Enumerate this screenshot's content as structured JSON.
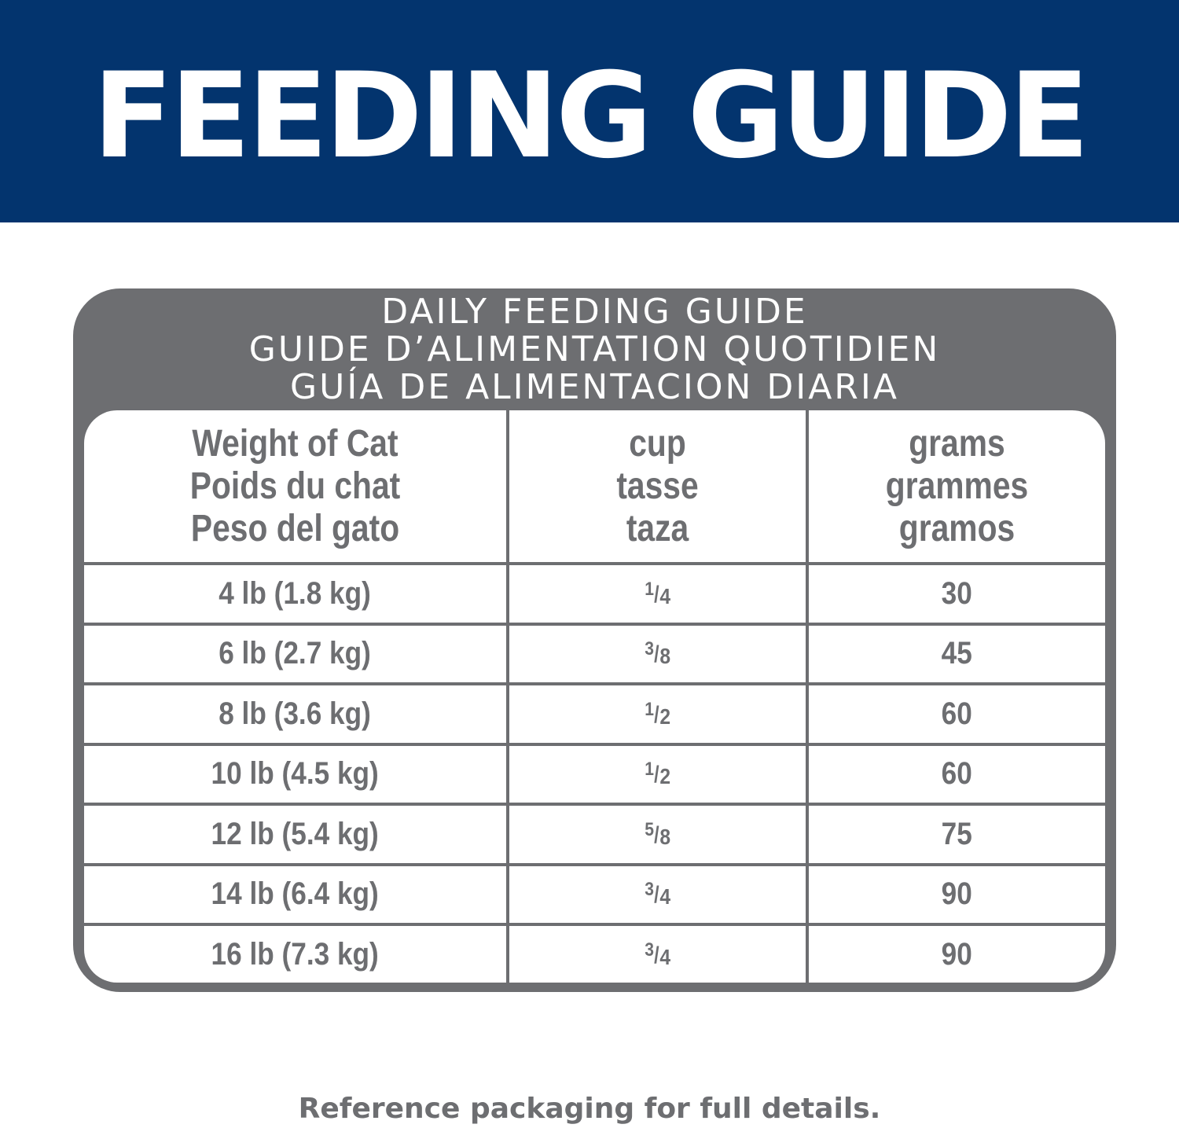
{
  "banner": {
    "title": "FEEDING GUIDE"
  },
  "card": {
    "title_lines": [
      "DAILY FEEDING GUIDE",
      "GUIDE D’ALIMENTATION QUOTIDIEN",
      "GUÍA DE ALIMENTACION DIARIA"
    ],
    "headers": [
      [
        "Weight of Cat",
        "Poids du chat",
        "Peso del gato"
      ],
      [
        "cup",
        "tasse",
        "taza"
      ],
      [
        "grams",
        "grammes",
        "gramos"
      ]
    ],
    "rows": [
      {
        "weight": "4 lb (1.8 kg)",
        "cup_num": "1",
        "cup_den": "4",
        "grams": "30"
      },
      {
        "weight": "6 lb (2.7 kg)",
        "cup_num": "3",
        "cup_den": "8",
        "grams": "45"
      },
      {
        "weight": "8 lb (3.6 kg)",
        "cup_num": "1",
        "cup_den": "2",
        "grams": "60"
      },
      {
        "weight": "10 lb (4.5 kg)",
        "cup_num": "1",
        "cup_den": "2",
        "grams": "60"
      },
      {
        "weight": "12 lb (5.4 kg)",
        "cup_num": "5",
        "cup_den": "8",
        "grams": "75"
      },
      {
        "weight": "14 lb (6.4 kg)",
        "cup_num": "3",
        "cup_den": "4",
        "grams": "90"
      },
      {
        "weight": "16 lb (7.3 kg)",
        "cup_num": "3",
        "cup_den": "4",
        "grams": "90"
      }
    ],
    "fraction_slash": "/"
  },
  "footer": {
    "note": "Reference packaging for full details."
  },
  "colors": {
    "banner": "#03346e",
    "gray": "#6d6e71"
  }
}
